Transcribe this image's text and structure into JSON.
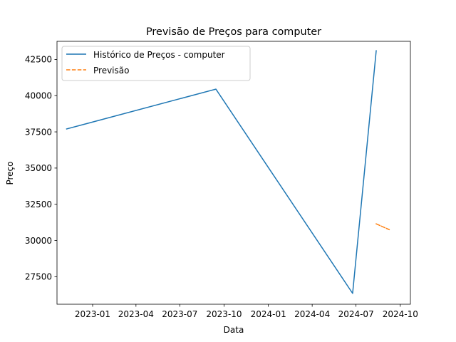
{
  "chart_data": {
    "type": "line",
    "title": "Previsão de Preços para computer",
    "xlabel": "Data",
    "ylabel": "Preço",
    "x_ticks": [
      "2023-01",
      "2023-04",
      "2023-07",
      "2023-10",
      "2024-01",
      "2024-04",
      "2024-07",
      "2024-10"
    ],
    "y_ticks": [
      27500,
      30000,
      32500,
      35000,
      37500,
      40000,
      42500
    ],
    "xlim": [
      "2022-10-19",
      "2024-10-22"
    ],
    "ylim": [
      25600,
      43750
    ],
    "grid": false,
    "legend_position": "upper-left",
    "series": [
      {
        "name": "Histórico de Preços - computer",
        "color": "#1f77b4",
        "style": "solid",
        "points": [
          {
            "x": "2022-11-08",
            "y": 37700
          },
          {
            "x": "2023-09-14",
            "y": 40450
          },
          {
            "x": "2024-06-24",
            "y": 26350
          },
          {
            "x": "2024-08-12",
            "y": 43100
          }
        ]
      },
      {
        "name": "Previsão",
        "color": "#ff7f0e",
        "style": "dashed",
        "points": [
          {
            "x": "2024-08-12",
            "y": 31150
          },
          {
            "x": "2024-09-08",
            "y": 30750
          }
        ]
      }
    ]
  }
}
